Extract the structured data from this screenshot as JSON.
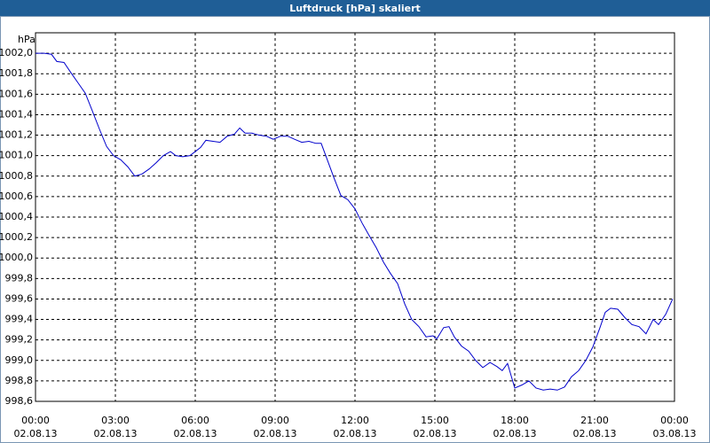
{
  "chart_data": {
    "type": "line",
    "title": "Luftdruck [hPa] skaliert",
    "y_unit": "hPa",
    "x": [
      0,
      0.33,
      0.6,
      0.8,
      1.07,
      1.33,
      1.6,
      1.87,
      2.13,
      2.4,
      2.67,
      2.93,
      3.2,
      3.47,
      3.73,
      4,
      4.27,
      4.53,
      4.8,
      5.07,
      5.27,
      5.53,
      5.8,
      6,
      6.2,
      6.4,
      6.67,
      6.93,
      7.2,
      7.47,
      7.67,
      7.87,
      8.13,
      8.4,
      8.67,
      8.93,
      9.2,
      9.47,
      9.73,
      10,
      10.27,
      10.53,
      10.73,
      10.93,
      11.2,
      11.47,
      11.73,
      12,
      12.27,
      12.53,
      12.8,
      13.07,
      13.33,
      13.6,
      13.87,
      14.13,
      14.4,
      14.67,
      14.93,
      15.07,
      15.33,
      15.53,
      15.73,
      16,
      16.27,
      16.53,
      16.8,
      17.07,
      17.33,
      17.53,
      17.73,
      18,
      18.27,
      18.53,
      18.8,
      19.07,
      19.33,
      19.6,
      19.87,
      20.13,
      20.4,
      20.67,
      20.93,
      21.2,
      21.4,
      21.6,
      21.87,
      22.13,
      22.4,
      22.67,
      22.93,
      23.2,
      23.4,
      23.67,
      23.93
    ],
    "series": [
      {
        "name": "Luftdruck",
        "color": "#0000cc",
        "values": [
          1002.0,
          1002.0,
          1001.99,
          1001.92,
          1001.91,
          1001.81,
          1001.71,
          1001.61,
          1001.44,
          1001.26,
          1001.09,
          1001.0,
          1000.96,
          1000.89,
          1000.8,
          1000.82,
          1000.87,
          1000.93,
          1001.0,
          1001.04,
          1001.0,
          1000.99,
          1001.0,
          1001.04,
          1001.08,
          1001.15,
          1001.14,
          1001.13,
          1001.19,
          1001.21,
          1001.27,
          1001.22,
          1001.22,
          1001.2,
          1001.19,
          1001.16,
          1001.19,
          1001.19,
          1001.16,
          1001.13,
          1001.14,
          1001.12,
          1001.12,
          1000.98,
          1000.79,
          1000.61,
          1000.57,
          1000.48,
          1000.34,
          1000.22,
          1000.1,
          999.96,
          999.85,
          999.75,
          999.55,
          999.4,
          999.33,
          999.23,
          999.24,
          999.21,
          999.32,
          999.33,
          999.23,
          999.14,
          999.09,
          999.0,
          998.93,
          998.98,
          998.94,
          998.9,
          998.97,
          998.73,
          998.76,
          998.8,
          998.73,
          998.71,
          998.72,
          998.71,
          998.74,
          998.84,
          998.9,
          999.0,
          999.13,
          999.32,
          999.47,
          999.51,
          999.5,
          999.42,
          999.35,
          999.33,
          999.26,
          999.4,
          999.35,
          999.45,
          999.6
        ]
      }
    ],
    "xlim": [
      0,
      24
    ],
    "xticks": [
      {
        "value": 0,
        "label": "00:00"
      },
      {
        "value": 3,
        "label": "03:00"
      },
      {
        "value": 6,
        "label": "06:00"
      },
      {
        "value": 9,
        "label": "09:00"
      },
      {
        "value": 12,
        "label": "12:00"
      },
      {
        "value": 15,
        "label": "15:00"
      },
      {
        "value": 18,
        "label": "18:00"
      },
      {
        "value": 21,
        "label": "21:00"
      },
      {
        "value": 24,
        "label": "00:00"
      }
    ],
    "xtick_dates": [
      "02.08.13",
      "02.08.13",
      "02.08.13",
      "02.08.13",
      "02.08.13",
      "02.08.13",
      "02.08.13",
      "02.08.13",
      "03.08.13"
    ],
    "ylim": [
      998.6,
      1002.2
    ],
    "yticks": [
      {
        "value": 998.6,
        "label": "998,6"
      },
      {
        "value": 998.8,
        "label": "998,8"
      },
      {
        "value": 999.0,
        "label": "999,0"
      },
      {
        "value": 999.2,
        "label": "999,2"
      },
      {
        "value": 999.4,
        "label": "999,4"
      },
      {
        "value": 999.6,
        "label": "999,6"
      },
      {
        "value": 999.8,
        "label": "999,8"
      },
      {
        "value": 1000.0,
        "label": "1000,0"
      },
      {
        "value": 1000.2,
        "label": "1000,2"
      },
      {
        "value": 1000.4,
        "label": "1000,4"
      },
      {
        "value": 1000.6,
        "label": "1000,6"
      },
      {
        "value": 1000.8,
        "label": "1000,8"
      },
      {
        "value": 1001.0,
        "label": "1001,0"
      },
      {
        "value": 1001.2,
        "label": "1001,2"
      },
      {
        "value": 1001.4,
        "label": "1001,4"
      },
      {
        "value": 1001.6,
        "label": "1001,6"
      },
      {
        "value": 1001.8,
        "label": "1001,8"
      },
      {
        "value": 1002.0,
        "label": "1002,0"
      }
    ],
    "grid": true
  }
}
